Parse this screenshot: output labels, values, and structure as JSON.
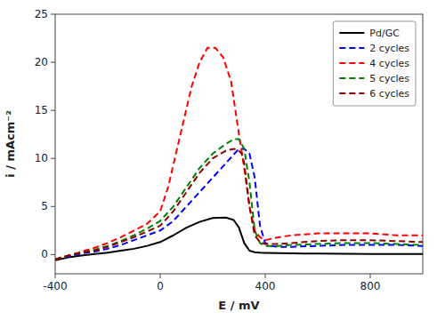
{
  "chart_data": {
    "type": "line",
    "xlabel": "E / mV",
    "ylabel": "i / mAcm⁻²",
    "xlim": [
      -400,
      1000
    ],
    "ylim": [
      -2,
      25
    ],
    "xticks": [
      -400,
      0,
      400,
      800
    ],
    "yticks": [
      0,
      5,
      10,
      15,
      20,
      25
    ],
    "grid": false,
    "legend": "upper right",
    "series": [
      {
        "name": "Pd/GC",
        "color": "#000000",
        "line_style": "solid",
        "x": [
          -400,
          -350,
          -300,
          -250,
          -200,
          -150,
          -100,
          -50,
          0,
          50,
          100,
          150,
          200,
          250,
          280,
          300,
          320,
          340,
          360,
          380,
          400,
          450,
          500,
          550,
          600,
          700,
          800,
          900,
          1000
        ],
        "values": [
          -0.6,
          -0.3,
          -0.1,
          0.05,
          0.2,
          0.4,
          0.6,
          0.9,
          1.3,
          2.0,
          2.8,
          3.4,
          3.8,
          3.85,
          3.6,
          2.8,
          1.2,
          0.4,
          0.25,
          0.2,
          0.18,
          0.15,
          0.12,
          0.1,
          0.1,
          0.08,
          0.05,
          0.05,
          0.05
        ]
      },
      {
        "name": "2 cycles",
        "color": "#0000ff",
        "line_style": "dashed",
        "x": [
          -400,
          -350,
          -300,
          -250,
          -200,
          -150,
          -100,
          -50,
          0,
          50,
          100,
          150,
          200,
          250,
          300,
          320,
          340,
          360,
          380,
          400,
          420,
          450,
          500,
          600,
          700,
          800,
          900,
          1000
        ],
        "values": [
          -0.5,
          -0.2,
          0.1,
          0.3,
          0.6,
          1.0,
          1.5,
          2.0,
          2.5,
          3.5,
          5.0,
          6.5,
          8.0,
          9.5,
          11.0,
          11.0,
          10.5,
          8.0,
          3.0,
          1.2,
          0.9,
          0.8,
          0.8,
          0.9,
          1.0,
          1.0,
          1.0,
          0.9
        ]
      },
      {
        "name": "4 cycles",
        "color": "#ff0000",
        "line_style": "dashed",
        "x": [
          -400,
          -350,
          -300,
          -250,
          -200,
          -150,
          -100,
          -50,
          0,
          30,
          60,
          90,
          120,
          150,
          180,
          210,
          240,
          270,
          300,
          320,
          340,
          360,
          380,
          400,
          450,
          500,
          600,
          700,
          800,
          900,
          1000
        ],
        "values": [
          -0.5,
          -0.1,
          0.3,
          0.7,
          1.2,
          1.8,
          2.5,
          3.2,
          4.5,
          7.0,
          10.5,
          14.0,
          17.5,
          20.0,
          21.5,
          21.5,
          20.5,
          18.0,
          12.5,
          9.0,
          5.0,
          2.5,
          1.8,
          1.5,
          1.8,
          2.0,
          2.2,
          2.2,
          2.2,
          2.0,
          2.0
        ]
      },
      {
        "name": "5 cycles",
        "color": "#008000",
        "line_style": "dashed",
        "x": [
          -400,
          -350,
          -300,
          -250,
          -200,
          -150,
          -100,
          -50,
          0,
          50,
          100,
          150,
          200,
          250,
          280,
          300,
          320,
          340,
          360,
          380,
          400,
          450,
          500,
          600,
          700,
          800,
          900,
          1000
        ],
        "values": [
          -0.5,
          -0.1,
          0.2,
          0.5,
          0.9,
          1.4,
          2.0,
          2.7,
          3.5,
          5.0,
          7.0,
          9.0,
          10.5,
          11.5,
          12.0,
          12.0,
          11.0,
          7.5,
          2.5,
          1.2,
          0.9,
          0.9,
          1.0,
          1.1,
          1.2,
          1.2,
          1.1,
          1.0
        ]
      },
      {
        "name": "6 cycles",
        "color": "#8b0000",
        "line_style": "dashed",
        "x": [
          -400,
          -350,
          -300,
          -250,
          -200,
          -150,
          -100,
          -50,
          0,
          50,
          100,
          150,
          200,
          250,
          280,
          300,
          310,
          320,
          340,
          360,
          380,
          400,
          450,
          500,
          600,
          700,
          800,
          900,
          1000
        ],
        "values": [
          -0.5,
          -0.1,
          0.2,
          0.4,
          0.8,
          1.3,
          1.8,
          2.4,
          3.0,
          4.5,
          6.5,
          8.5,
          10.0,
          10.8,
          11.0,
          10.8,
          10.5,
          9.5,
          5.0,
          2.0,
          1.3,
          1.1,
          1.1,
          1.2,
          1.4,
          1.5,
          1.5,
          1.4,
          1.3
        ]
      }
    ]
  }
}
